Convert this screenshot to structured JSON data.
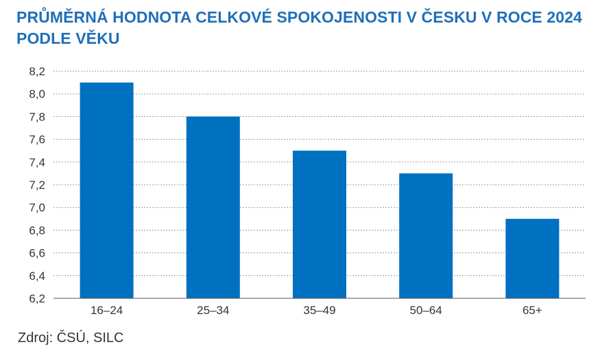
{
  "title_line1": "PRŮMĚRNÁ HODNOTA CELKOVÉ SPOKOJENOSTI V ČESKU V ROCE 2024",
  "title_line2": "PODLE VĚKU",
  "source": "Zdroj: ČSÚ, SILC",
  "chart_data": {
    "type": "bar",
    "categories": [
      "16–24",
      "25–34",
      "35–49",
      "50–64",
      "65+"
    ],
    "values": [
      8.1,
      7.8,
      7.5,
      7.3,
      6.9
    ],
    "ylim": [
      6.2,
      8.2
    ],
    "yticks": [
      "6,2",
      "6,4",
      "6,6",
      "6,8",
      "7,0",
      "7,2",
      "7,4",
      "7,6",
      "7,8",
      "8,0",
      "8,2"
    ],
    "grid": true,
    "bar_color": "#0070c0"
  }
}
